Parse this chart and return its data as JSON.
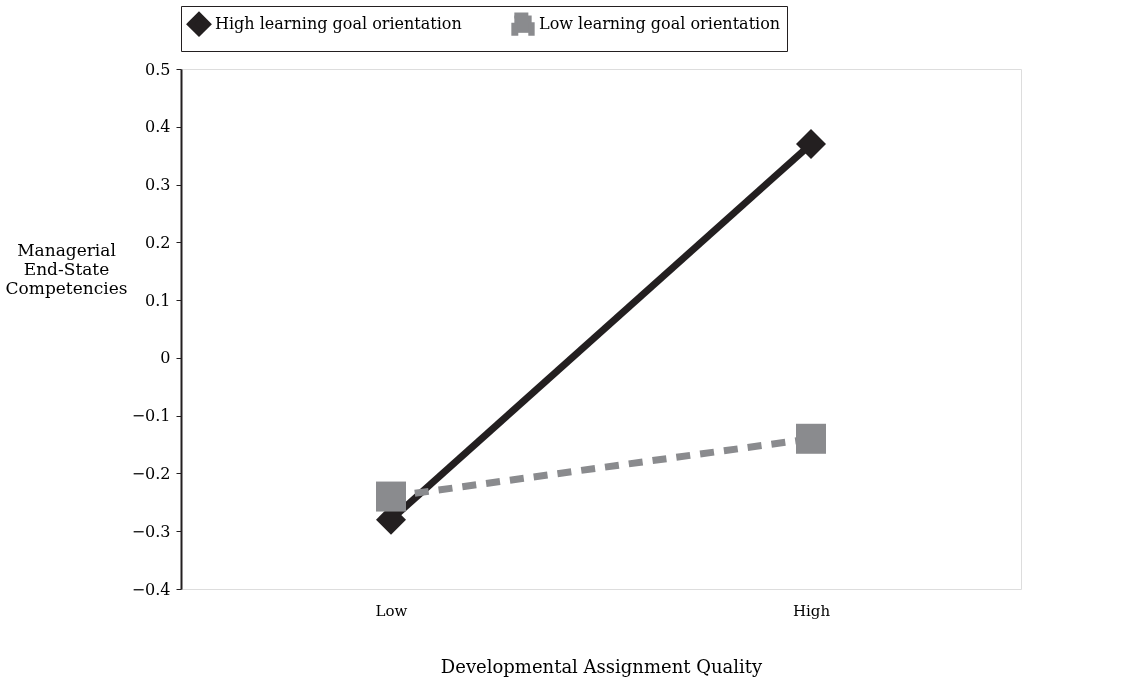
{
  "chart_data": {
    "type": "line",
    "xlabel": "Developmental Assignment Quality",
    "ylabel": "Managerial End-State Competencies",
    "categories": [
      "Low",
      "High"
    ],
    "series": [
      {
        "name": "High learning goal orientation",
        "color": "#231f20",
        "values": [
          -0.28,
          0.37
        ],
        "marker": "diamond",
        "line_style": "solid"
      },
      {
        "name": "Low learning goal orientation",
        "color": "#8a8b8e",
        "values": [
          -0.24,
          -0.14
        ],
        "marker": "square",
        "line_style": "dashed"
      }
    ],
    "ylim": [
      -0.4,
      0.5
    ],
    "yticks": [
      {
        "value": -0.4,
        "label": "−0.4"
      },
      {
        "value": -0.3,
        "label": "−0.3"
      },
      {
        "value": -0.2,
        "label": "−0.2"
      },
      {
        "value": -0.1,
        "label": "−0.1"
      },
      0,
      0.1,
      0.2,
      0.3,
      0.4,
      0.5
    ],
    "grid": false,
    "legend": "top"
  }
}
